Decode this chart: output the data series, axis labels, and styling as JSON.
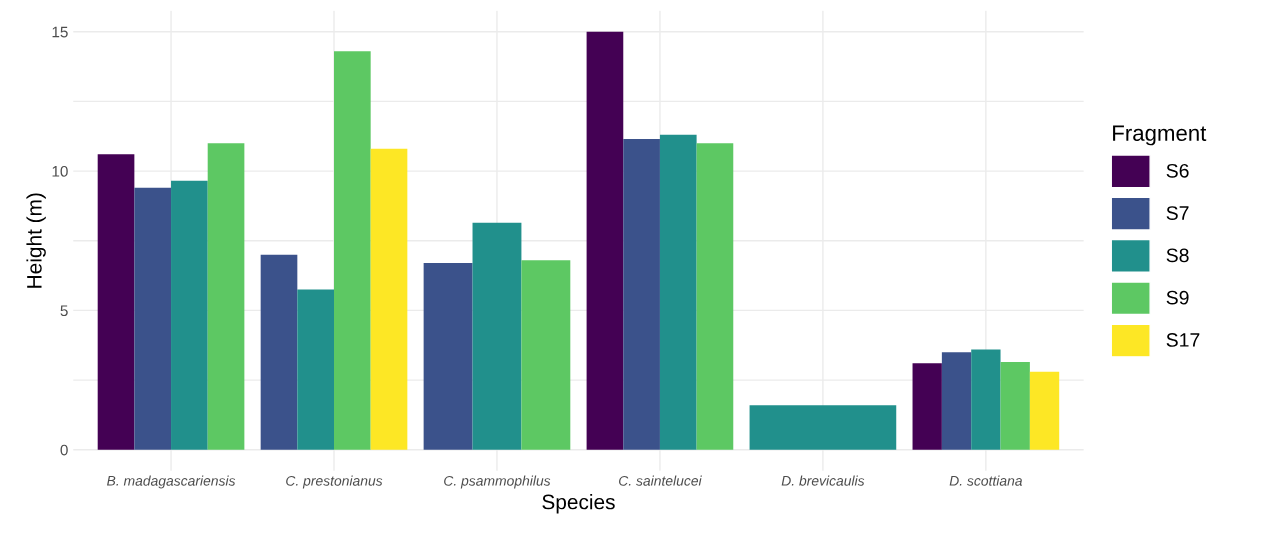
{
  "chart_data": {
    "type": "bar",
    "xlabel": "Species",
    "ylabel": "Height (m)",
    "legend_title": "Fragment",
    "categories": [
      "B. madagascariensis",
      "C. prestonianus",
      "C. psammophilus",
      "C. saintelucei",
      "D. brevicaulis",
      "D. scottiana"
    ],
    "series": [
      {
        "name": "S6",
        "color": "#440154",
        "values": [
          10.6,
          null,
          null,
          15.0,
          null,
          3.1
        ]
      },
      {
        "name": "S7",
        "color": "#3b528b",
        "values": [
          9.4,
          7.0,
          6.7,
          11.15,
          null,
          3.5
        ]
      },
      {
        "name": "S8",
        "color": "#21908c",
        "values": [
          9.65,
          5.75,
          8.15,
          11.3,
          1.6,
          3.6
        ]
      },
      {
        "name": "S9",
        "color": "#5dc863",
        "values": [
          11.0,
          14.3,
          6.8,
          11.0,
          null,
          3.15
        ]
      },
      {
        "name": "S17",
        "color": "#fde725",
        "values": [
          null,
          10.8,
          null,
          null,
          null,
          2.8
        ]
      }
    ],
    "ylim": [
      -0.75,
      15.75
    ],
    "yticks": [
      0,
      {
        "value": 2.5,
        "label": null
      },
      5,
      {
        "value": 7.5,
        "label": null
      },
      10,
      {
        "value": 12.5,
        "label": null
      },
      15
    ],
    "grid": true,
    "legend": "right"
  }
}
